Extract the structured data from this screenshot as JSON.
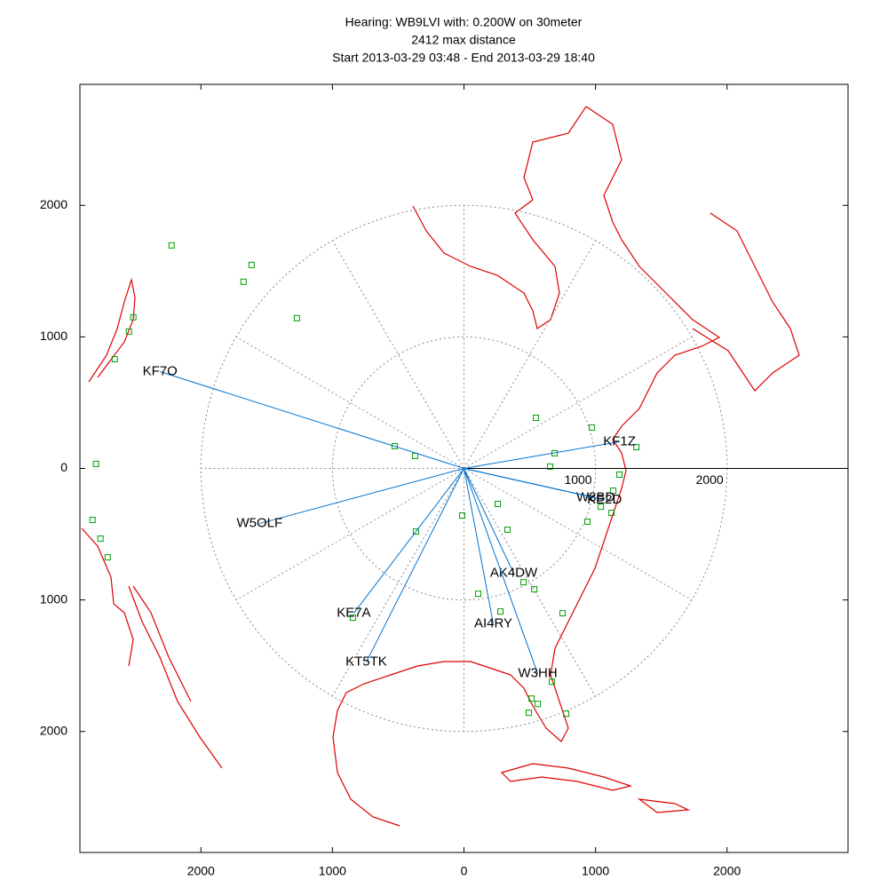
{
  "chart_data": {
    "type": "scatter",
    "title": [
      "Hearing: WB9LVI with: 0.200W on 30meter",
      "2412 max distance",
      "Start 2013-03-29 03:48 - End 2013-03-29 18:40"
    ],
    "xlim": [
      -2920,
      2920
    ],
    "ylim": [
      -2920,
      2920
    ],
    "xticks": [
      {
        "value": -2000,
        "label": "2000"
      },
      {
        "value": -1000,
        "label": "1000"
      },
      0,
      1000,
      2000
    ],
    "yticks": [
      {
        "value": -2000,
        "label": "2000"
      },
      {
        "value": -1000,
        "label": "1000"
      },
      0,
      1000,
      2000
    ],
    "ring_labels": [
      {
        "value": 1000,
        "label": "1000"
      },
      {
        "value": 2000,
        "label": "2000"
      }
    ],
    "line_color": "#0072d0",
    "spot_color": "#00a000",
    "coast_color": "#dd0000",
    "stations": [
      {
        "label": "KF7O",
        "x": -2311,
        "y": 736
      },
      {
        "label": "KF1Z",
        "x": 1182,
        "y": 203
      },
      {
        "label": "W8BD",
        "x": 1000,
        "y": -223
      },
      {
        "label": "KE2D",
        "x": 1068,
        "y": -240
      },
      {
        "label": "W5OLF",
        "x": -1554,
        "y": -419
      },
      {
        "label": "KE7A",
        "x": -838,
        "y": -1101
      },
      {
        "label": "KT5TK",
        "x": -743,
        "y": -1473
      },
      {
        "label": "AK4DW",
        "x": 378,
        "y": -797
      },
      {
        "label": "AI4RY",
        "x": 223,
        "y": -1182
      },
      {
        "label": "W3HH",
        "x": 561,
        "y": -1561
      }
    ],
    "spots": {
      "x": [
        -2223,
        -1615,
        -1676,
        -1270,
        -2514,
        -2547,
        -2655,
        -2797,
        -2824,
        -2764,
        -2709,
        -527,
        -372,
        547,
        973,
        689,
        655,
        1182,
        1311,
        -14,
        257,
        331,
        -365,
        534,
        453,
        108,
        277,
        750,
        -845,
        514,
        493,
        561,
        669,
        777,
        939,
        1122,
        1135,
        1041
      ],
      "y": [
        1696,
        1547,
        1419,
        1142,
        1149,
        1041,
        831,
        34,
        -392,
        -534,
        -676,
        169,
        95,
        385,
        311,
        115,
        14,
        -47,
        162,
        -358,
        -270,
        -466,
        -480,
        -919,
        -865,
        -953,
        -1088,
        -1101,
        -1135,
        -1750,
        -1858,
        -1791,
        -1622,
        -1865,
        -405,
        -338,
        -169,
        -291
      ]
    }
  }
}
